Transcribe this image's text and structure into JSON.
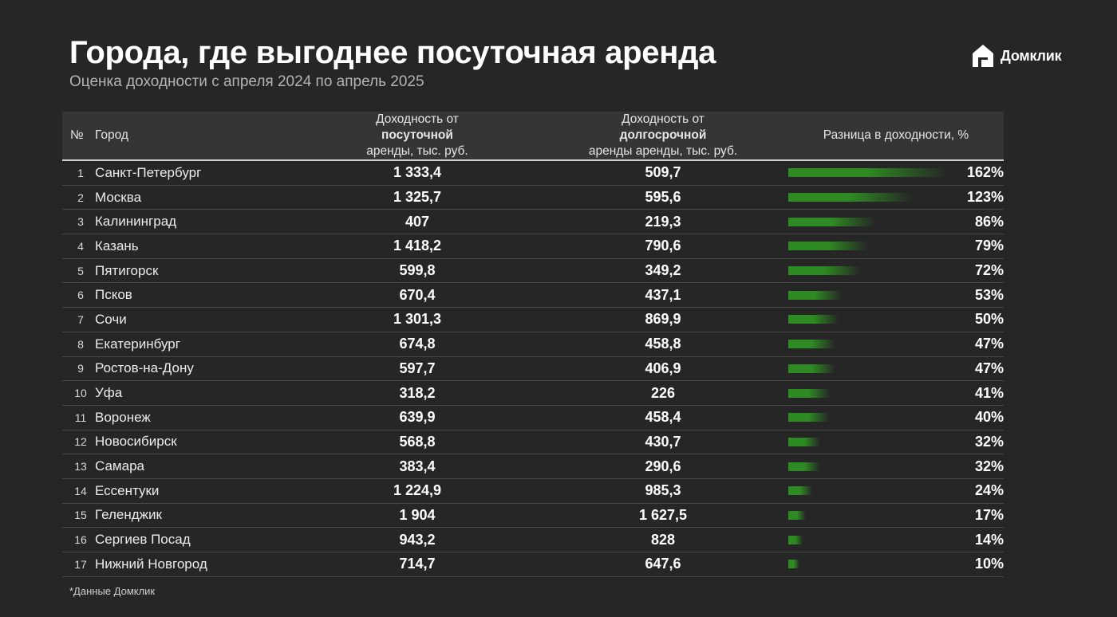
{
  "header": {
    "title": "Города, где выгоднее посуточная аренда",
    "subtitle": "Оценка доходности с апреля 2024 по апрель 2025",
    "brand": "Домклик",
    "brand_icon": "house-logo-icon"
  },
  "table": {
    "columns": {
      "num": "№",
      "city": "Город",
      "daily_prefix": "Доходность от ",
      "daily_bold": "посуточной",
      "daily_suffix": "аренды, тыс. руб.",
      "long_prefix": "Доходность от ",
      "long_bold": "долгосрочной",
      "long_suffix": "аренды аренды, тыс. руб.",
      "diff": "Разница в доходности, %"
    },
    "bar_color": "#2e8a22",
    "rows": [
      {
        "num": "1",
        "city": "Санкт-Петербург",
        "daily": "1 333,4",
        "long": "509,7",
        "diff": "162%",
        "diff_value": 162
      },
      {
        "num": "2",
        "city": "Москва",
        "daily": "1 325,7",
        "long": "595,6",
        "diff": "123%",
        "diff_value": 123
      },
      {
        "num": "3",
        "city": "Калининград",
        "daily": "407",
        "long": "219,3",
        "diff": "86%",
        "diff_value": 86
      },
      {
        "num": "4",
        "city": "Казань",
        "daily": "1 418,2",
        "long": "790,6",
        "diff": "79%",
        "diff_value": 79
      },
      {
        "num": "5",
        "city": "Пятигорск",
        "daily": "599,8",
        "long": "349,2",
        "diff": "72%",
        "diff_value": 72
      },
      {
        "num": "6",
        "city": "Псков",
        "daily": "670,4",
        "long": "437,1",
        "diff": "53%",
        "diff_value": 53
      },
      {
        "num": "7",
        "city": "Сочи",
        "daily": "1 301,3",
        "long": "869,9",
        "diff": "50%",
        "diff_value": 50
      },
      {
        "num": "8",
        "city": "Екатеринбург",
        "daily": "674,8",
        "long": "458,8",
        "diff": "47%",
        "diff_value": 47
      },
      {
        "num": "9",
        "city": "Ростов-на-Дону",
        "daily": "597,7",
        "long": "406,9",
        "diff": "47%",
        "diff_value": 47
      },
      {
        "num": "10",
        "city": "Уфа",
        "daily": "318,2",
        "long": "226",
        "diff": "41%",
        "diff_value": 41
      },
      {
        "num": "11",
        "city": "Воронеж",
        "daily": "639,9",
        "long": "458,4",
        "diff": "40%",
        "diff_value": 40
      },
      {
        "num": "12",
        "city": "Новосибирск",
        "daily": "568,8",
        "long": "430,7",
        "diff": "32%",
        "diff_value": 32
      },
      {
        "num": "13",
        "city": "Самара",
        "daily": "383,4",
        "long": "290,6",
        "diff": "32%",
        "diff_value": 32
      },
      {
        "num": "14",
        "city": "Ессентуки",
        "daily": "1 224,9",
        "long": "985,3",
        "diff": "24%",
        "diff_value": 24
      },
      {
        "num": "15",
        "city": "Геленджик",
        "daily": "1 904",
        "long": "1 627,5",
        "diff": "17%",
        "diff_value": 17
      },
      {
        "num": "16",
        "city": "Сергиев Посад",
        "daily": "943,2",
        "long": "828",
        "diff": "14%",
        "diff_value": 14
      },
      {
        "num": "17",
        "city": "Нижний Новгород",
        "daily": "714,7",
        "long": "647,6",
        "diff": "10%",
        "diff_value": 10
      }
    ]
  },
  "footnote": "*Данные Домклик"
}
